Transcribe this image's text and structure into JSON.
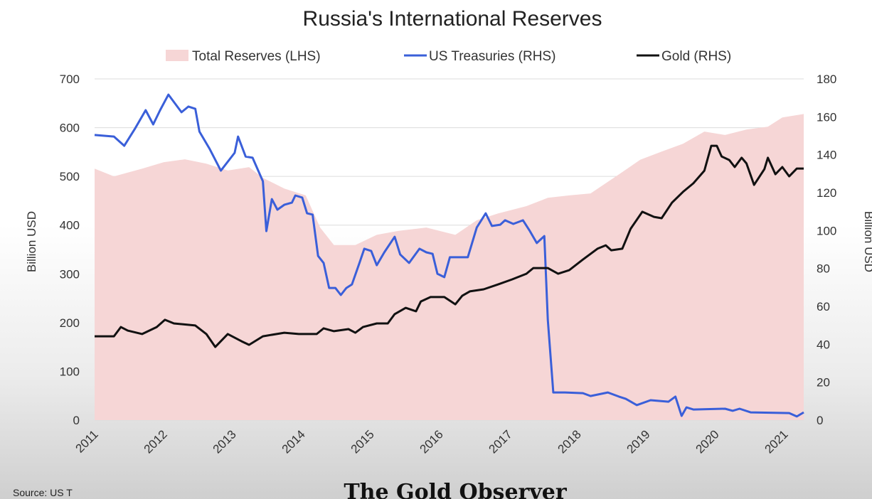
{
  "chart_data": {
    "type": "line",
    "title": "Russia's International Reserves",
    "ylabel": "Billion USD",
    "y2label": "Billion USD",
    "xlabel": "",
    "xlim": [
      2011,
      2021.28
    ],
    "ylim": [
      0,
      700
    ],
    "y2lim": [
      0,
      180
    ],
    "grid": true,
    "legend_position": "top",
    "x_ticks": [
      "2011",
      "2012",
      "2013",
      "2014",
      "2015",
      "2016",
      "2017",
      "2018",
      "2019",
      "2020",
      "2021"
    ],
    "y_ticks": [
      "0",
      "100",
      "200",
      "300",
      "400",
      "500",
      "600",
      "700"
    ],
    "y2_ticks": [
      "0",
      "20",
      "40",
      "60",
      "80",
      "100",
      "120",
      "140",
      "160",
      "180"
    ],
    "series": [
      {
        "name": "Total Reserves (LHS)",
        "type": "area",
        "axis": "left",
        "color": "#f6d6d6",
        "points": [
          [
            2011.0,
            516
          ],
          [
            2011.28,
            500
          ],
          [
            2011.69,
            516
          ],
          [
            2012.0,
            529
          ],
          [
            2012.31,
            535
          ],
          [
            2012.62,
            526
          ],
          [
            2012.93,
            512
          ],
          [
            2013.24,
            519
          ],
          [
            2013.44,
            497
          ],
          [
            2013.75,
            475
          ],
          [
            2014.06,
            461
          ],
          [
            2014.27,
            395
          ],
          [
            2014.47,
            359
          ],
          [
            2014.78,
            359
          ],
          [
            2015.09,
            380
          ],
          [
            2015.4,
            388
          ],
          [
            2015.81,
            395
          ],
          [
            2016.23,
            380
          ],
          [
            2016.54,
            410
          ],
          [
            2016.85,
            424
          ],
          [
            2017.26,
            439
          ],
          [
            2017.57,
            456
          ],
          [
            2017.88,
            461
          ],
          [
            2018.19,
            465
          ],
          [
            2018.6,
            504
          ],
          [
            2018.91,
            534
          ],
          [
            2019.22,
            551
          ],
          [
            2019.53,
            567
          ],
          [
            2019.84,
            592
          ],
          [
            2020.14,
            585
          ],
          [
            2020.45,
            596
          ],
          [
            2020.76,
            602
          ],
          [
            2020.97,
            621
          ],
          [
            2021.28,
            628
          ]
        ]
      },
      {
        "name": "US Treasuries (RHS)",
        "type": "line",
        "axis": "right",
        "color": "#3a5fd9",
        "points": [
          [
            2011.0,
            150.4
          ],
          [
            2011.28,
            149.6
          ],
          [
            2011.43,
            144.7
          ],
          [
            2011.59,
            154
          ],
          [
            2011.74,
            163.5
          ],
          [
            2011.85,
            156
          ],
          [
            2011.95,
            163.5
          ],
          [
            2012.07,
            171.7
          ],
          [
            2012.26,
            162.4
          ],
          [
            2012.36,
            165.4
          ],
          [
            2012.46,
            164.2
          ],
          [
            2012.52,
            152.2
          ],
          [
            2012.67,
            142.9
          ],
          [
            2012.83,
            131.6
          ],
          [
            2013.03,
            141
          ],
          [
            2013.08,
            149.6
          ],
          [
            2013.19,
            139
          ],
          [
            2013.29,
            138.4
          ],
          [
            2013.44,
            126
          ],
          [
            2013.49,
            99.7
          ],
          [
            2013.57,
            116.6
          ],
          [
            2013.65,
            111
          ],
          [
            2013.75,
            113.6
          ],
          [
            2013.86,
            114.7
          ],
          [
            2013.91,
            118.5
          ],
          [
            2014.01,
            117.4
          ],
          [
            2014.08,
            109.1
          ],
          [
            2014.16,
            108.4
          ],
          [
            2014.24,
            86.6
          ],
          [
            2014.32,
            82.9
          ],
          [
            2014.4,
            69.7
          ],
          [
            2014.49,
            69.7
          ],
          [
            2014.57,
            66
          ],
          [
            2014.65,
            69.7
          ],
          [
            2014.73,
            71.6
          ],
          [
            2014.84,
            82.9
          ],
          [
            2014.91,
            90.4
          ],
          [
            2015.01,
            89.2
          ],
          [
            2015.09,
            81.7
          ],
          [
            2015.2,
            88.5
          ],
          [
            2015.35,
            96.7
          ],
          [
            2015.43,
            87.4
          ],
          [
            2015.56,
            82.9
          ],
          [
            2015.71,
            90.4
          ],
          [
            2015.81,
            88.5
          ],
          [
            2015.9,
            87.7
          ],
          [
            2015.97,
            77.2
          ],
          [
            2016.07,
            75.4
          ],
          [
            2016.15,
            85.9
          ],
          [
            2016.41,
            85.9
          ],
          [
            2016.54,
            101.6
          ],
          [
            2016.67,
            109.1
          ],
          [
            2016.76,
            102.4
          ],
          [
            2016.88,
            103.1
          ],
          [
            2016.95,
            105.4
          ],
          [
            2017.07,
            103.5
          ],
          [
            2017.21,
            105.4
          ],
          [
            2017.31,
            99.7
          ],
          [
            2017.41,
            93.4
          ],
          [
            2017.52,
            97.1
          ],
          [
            2017.57,
            52.9
          ],
          [
            2017.65,
            14.6
          ],
          [
            2017.82,
            14.6
          ],
          [
            2018.08,
            14.2
          ],
          [
            2018.19,
            12.7
          ],
          [
            2018.44,
            14.6
          ],
          [
            2018.6,
            12.4
          ],
          [
            2018.7,
            11.2
          ],
          [
            2018.86,
            7.9
          ],
          [
            2019.06,
            10.5
          ],
          [
            2019.32,
            9.7
          ],
          [
            2019.42,
            12.4
          ],
          [
            2019.51,
            2.2
          ],
          [
            2019.58,
            6.7
          ],
          [
            2019.68,
            5.6
          ],
          [
            2020.14,
            6
          ],
          [
            2020.25,
            4.9
          ],
          [
            2020.35,
            6
          ],
          [
            2020.51,
            4.1
          ],
          [
            2021.07,
            3.7
          ],
          [
            2021.18,
            1.9
          ],
          [
            2021.28,
            4.1
          ]
        ]
      },
      {
        "name": "Gold (RHS)",
        "type": "line",
        "axis": "right",
        "color": "#111111",
        "points": [
          [
            2011.0,
            44.2
          ],
          [
            2011.28,
            44.2
          ],
          [
            2011.38,
            49.1
          ],
          [
            2011.48,
            47.2
          ],
          [
            2011.69,
            45.4
          ],
          [
            2011.9,
            49.1
          ],
          [
            2012.02,
            52.9
          ],
          [
            2012.15,
            51
          ],
          [
            2012.46,
            49.9
          ],
          [
            2012.62,
            45.4
          ],
          [
            2012.75,
            38.6
          ],
          [
            2012.93,
            45.4
          ],
          [
            2013.13,
            41.6
          ],
          [
            2013.24,
            39.7
          ],
          [
            2013.44,
            44.2
          ],
          [
            2013.75,
            46.1
          ],
          [
            2013.96,
            45.4
          ],
          [
            2014.22,
            45.4
          ],
          [
            2014.32,
            48.4
          ],
          [
            2014.47,
            46.9
          ],
          [
            2014.68,
            48
          ],
          [
            2014.78,
            46.1
          ],
          [
            2014.89,
            49.1
          ],
          [
            2015.09,
            51
          ],
          [
            2015.25,
            51
          ],
          [
            2015.35,
            55.9
          ],
          [
            2015.51,
            59.2
          ],
          [
            2015.66,
            57.4
          ],
          [
            2015.73,
            62.6
          ],
          [
            2015.87,
            64.9
          ],
          [
            2016.07,
            64.9
          ],
          [
            2016.23,
            61.1
          ],
          [
            2016.33,
            65.6
          ],
          [
            2016.44,
            67.9
          ],
          [
            2016.64,
            69
          ],
          [
            2016.85,
            71.6
          ],
          [
            2017.05,
            74.2
          ],
          [
            2017.26,
            77.2
          ],
          [
            2017.36,
            80.2
          ],
          [
            2017.57,
            80.2
          ],
          [
            2017.72,
            77.2
          ],
          [
            2017.88,
            79.1
          ],
          [
            2018.08,
            84.7
          ],
          [
            2018.29,
            90.4
          ],
          [
            2018.41,
            92.2
          ],
          [
            2018.49,
            89.6
          ],
          [
            2018.65,
            90.4
          ],
          [
            2018.77,
            100.9
          ],
          [
            2018.94,
            109.9
          ],
          [
            2019.11,
            107.2
          ],
          [
            2019.22,
            106.5
          ],
          [
            2019.37,
            114.7
          ],
          [
            2019.53,
            120.4
          ],
          [
            2019.68,
            124.9
          ],
          [
            2019.84,
            131.6
          ],
          [
            2019.94,
            144.7
          ],
          [
            2020.02,
            144.7
          ],
          [
            2020.09,
            139.1
          ],
          [
            2020.2,
            137.2
          ],
          [
            2020.28,
            133.5
          ],
          [
            2020.38,
            138.4
          ],
          [
            2020.45,
            135.4
          ],
          [
            2020.56,
            124.1
          ],
          [
            2020.71,
            132.4
          ],
          [
            2020.76,
            138.4
          ],
          [
            2020.87,
            129.7
          ],
          [
            2020.97,
            133.5
          ],
          [
            2021.07,
            128.6
          ],
          [
            2021.18,
            132.7
          ],
          [
            2021.28,
            132.7
          ]
        ]
      }
    ]
  },
  "footer": {
    "brand": "The Gold Observer",
    "source": "Source: US T"
  }
}
